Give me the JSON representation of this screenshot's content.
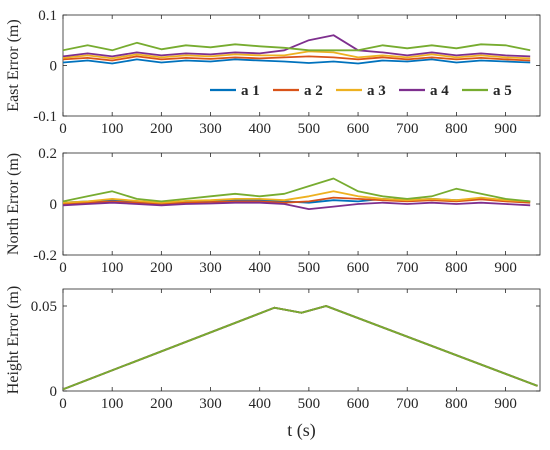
{
  "chart_data": [
    {
      "type": "line",
      "ylabel": "East Error (m)",
      "xlabel": "",
      "xlim": [
        0,
        970
      ],
      "ylim": [
        -0.1,
        0.1
      ],
      "xticks": [
        0,
        100,
        200,
        300,
        400,
        500,
        600,
        700,
        800,
        900
      ],
      "yticks": [
        "-0.1",
        "0",
        "0.1"
      ],
      "ytick_values": [
        -0.1,
        0,
        0.1
      ],
      "grid": false,
      "legend": "bottom-right (horizontal)",
      "x": [
        0,
        50,
        100,
        150,
        200,
        250,
        300,
        350,
        400,
        450,
        500,
        550,
        600,
        650,
        700,
        750,
        800,
        850,
        900,
        950
      ],
      "series": [
        {
          "name": "a 1",
          "color": "#0072BD",
          "values": [
            0.006,
            0.01,
            0.004,
            0.012,
            0.006,
            0.01,
            0.008,
            0.012,
            0.01,
            0.008,
            0.005,
            0.008,
            0.004,
            0.01,
            0.008,
            0.012,
            0.006,
            0.01,
            0.008,
            0.006
          ]
        },
        {
          "name": "a 2",
          "color": "#D95319",
          "values": [
            0.012,
            0.015,
            0.01,
            0.018,
            0.012,
            0.015,
            0.013,
            0.016,
            0.014,
            0.016,
            0.018,
            0.016,
            0.012,
            0.016,
            0.012,
            0.016,
            0.012,
            0.015,
            0.012,
            0.01
          ]
        },
        {
          "name": "a 3",
          "color": "#EDB120",
          "values": [
            0.015,
            0.02,
            0.014,
            0.022,
            0.016,
            0.02,
            0.018,
            0.022,
            0.02,
            0.02,
            0.028,
            0.026,
            0.016,
            0.02,
            0.016,
            0.022,
            0.016,
            0.02,
            0.016,
            0.014
          ]
        },
        {
          "name": "a 4",
          "color": "#7E2F8E",
          "values": [
            0.018,
            0.024,
            0.018,
            0.026,
            0.02,
            0.024,
            0.022,
            0.026,
            0.024,
            0.03,
            0.05,
            0.06,
            0.03,
            0.026,
            0.02,
            0.026,
            0.02,
            0.024,
            0.02,
            0.018
          ]
        },
        {
          "name": "a 5",
          "color": "#77AC30",
          "values": [
            0.03,
            0.04,
            0.03,
            0.045,
            0.032,
            0.04,
            0.036,
            0.042,
            0.038,
            0.035,
            0.03,
            0.03,
            0.03,
            0.04,
            0.034,
            0.04,
            0.034,
            0.042,
            0.04,
            0.03
          ]
        }
      ]
    },
    {
      "type": "line",
      "ylabel": "North Error (m)",
      "xlabel": "",
      "xlim": [
        0,
        970
      ],
      "ylim": [
        -0.2,
        0.2
      ],
      "xticks": [
        0,
        100,
        200,
        300,
        400,
        500,
        600,
        700,
        800,
        900
      ],
      "yticks": [
        "-0.2",
        "0",
        "0.2"
      ],
      "ytick_values": [
        -0.2,
        0,
        0.2
      ],
      "grid": false,
      "x": [
        0,
        50,
        100,
        150,
        200,
        250,
        300,
        350,
        400,
        450,
        500,
        550,
        600,
        650,
        700,
        750,
        800,
        850,
        900,
        950
      ],
      "series": [
        {
          "name": "a 1",
          "color": "#0072BD",
          "values": [
            0.005,
            0.01,
            0.015,
            0.01,
            0.005,
            0.01,
            0.012,
            0.015,
            0.015,
            0.01,
            0.005,
            0.015,
            0.01,
            0.02,
            0.015,
            0.02,
            0.015,
            0.02,
            0.015,
            0.01
          ]
        },
        {
          "name": "a 2",
          "color": "#D95319",
          "values": [
            0.0,
            0.005,
            0.01,
            0.005,
            0.0,
            0.005,
            0.008,
            0.01,
            0.01,
            0.005,
            0.01,
            0.025,
            0.02,
            0.015,
            0.01,
            0.015,
            0.01,
            0.018,
            0.01,
            0.005
          ]
        },
        {
          "name": "a 3",
          "color": "#EDB120",
          "values": [
            0.005,
            0.01,
            0.02,
            0.012,
            0.005,
            0.012,
            0.015,
            0.02,
            0.02,
            0.015,
            0.03,
            0.05,
            0.03,
            0.02,
            0.015,
            0.02,
            0.015,
            0.025,
            0.015,
            0.01
          ]
        },
        {
          "name": "a 4",
          "color": "#7E2F8E",
          "values": [
            -0.005,
            0.0,
            0.005,
            0.0,
            -0.005,
            0.0,
            0.002,
            0.005,
            0.005,
            0.0,
            -0.02,
            -0.01,
            0.0,
            0.005,
            0.0,
            0.005,
            0.0,
            0.005,
            0.0,
            -0.005
          ]
        },
        {
          "name": "a 5",
          "color": "#77AC30",
          "values": [
            0.01,
            0.03,
            0.05,
            0.02,
            0.01,
            0.02,
            0.03,
            0.04,
            0.03,
            0.04,
            0.07,
            0.1,
            0.05,
            0.03,
            0.02,
            0.03,
            0.06,
            0.04,
            0.02,
            0.01
          ]
        }
      ]
    },
    {
      "type": "line",
      "ylabel": "Height Error (m)",
      "xlabel": "t (s)",
      "xlim": [
        0,
        970
      ],
      "ylim": [
        0,
        0.06
      ],
      "xticks": [
        0,
        100,
        200,
        300,
        400,
        500,
        600,
        700,
        800,
        900
      ],
      "yticks": [
        "0",
        "0.05"
      ],
      "ytick_values": [
        0,
        0.05
      ],
      "grid": false,
      "x": [
        0,
        430,
        485,
        535,
        965
      ],
      "series": [
        {
          "name": "a 1",
          "color": "#0072BD",
          "values": [
            0.001,
            0.049,
            0.046,
            0.05,
            0.003
          ]
        },
        {
          "name": "a 2",
          "color": "#D95319",
          "values": [
            0.001,
            0.049,
            0.046,
            0.05,
            0.003
          ]
        },
        {
          "name": "a 3",
          "color": "#EDB120",
          "values": [
            0.001,
            0.049,
            0.046,
            0.05,
            0.003
          ]
        },
        {
          "name": "a 4",
          "color": "#7E2F8E",
          "values": [
            0.001,
            0.049,
            0.046,
            0.05,
            0.003
          ]
        },
        {
          "name": "a 5",
          "color": "#77AC30",
          "values": [
            0.001,
            0.049,
            0.046,
            0.05,
            0.003
          ]
        }
      ]
    }
  ]
}
